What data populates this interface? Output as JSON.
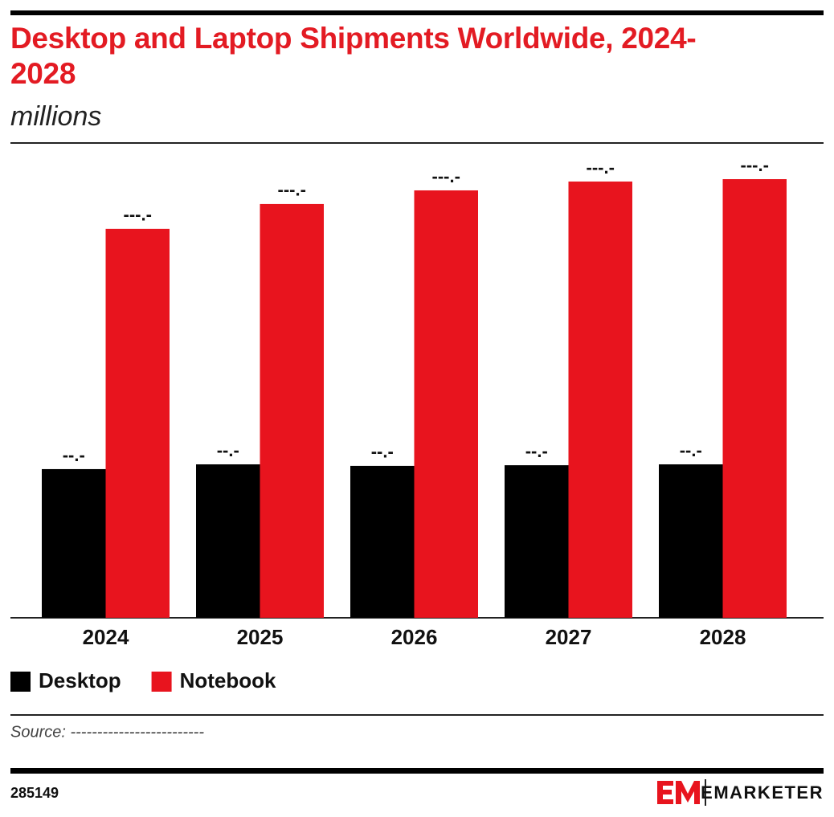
{
  "chart_data": {
    "type": "bar",
    "title": "Desktop and Laptop Shipments Worldwide, 2024-2028",
    "subtitle": "millions",
    "categories": [
      "2024",
      "2025",
      "2026",
      "2027",
      "2028"
    ],
    "series": [
      {
        "name": "Desktop",
        "color": "#000000",
        "values": [
          68.8,
          71.0,
          70.3,
          70.6,
          71.0
        ],
        "value_labels": [
          "--.-",
          "--.-",
          "--.-",
          "--.-",
          "--.-"
        ]
      },
      {
        "name": "Notebook",
        "color": "#e8141e",
        "values": [
          180.0,
          191.5,
          197.8,
          201.9,
          203.0
        ],
        "value_labels": [
          "---.-",
          "---.-",
          "---.-",
          "---.-",
          "---.-"
        ]
      }
    ],
    "source": "Source: -------------------------",
    "chart_id": "285149",
    "brand": "EMARKETER"
  }
}
